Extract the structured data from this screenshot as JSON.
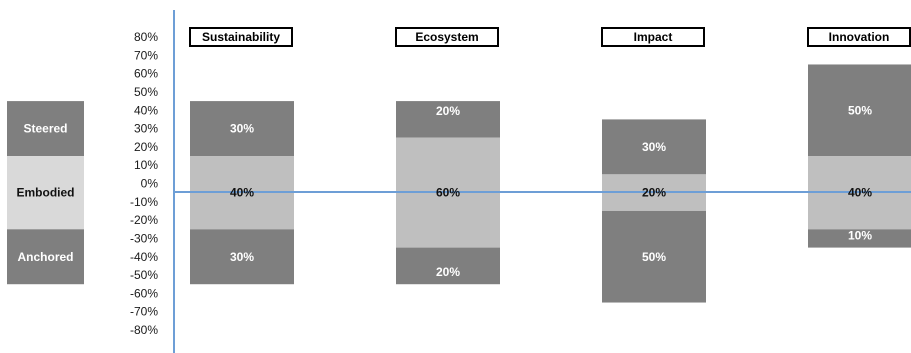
{
  "chart_data": {
    "type": "bar",
    "title": "",
    "xlabel": "",
    "ylabel": "",
    "ylim": [
      -80,
      80
    ],
    "y_ticks": [
      "80%",
      "70%",
      "60%",
      "50%",
      "40%",
      "30%",
      "20%",
      "10%",
      "0%",
      "-10%",
      "-20%",
      "-30%",
      "-40%",
      "-50%",
      "-60%",
      "-70%",
      "-80%"
    ],
    "colors": {
      "dark": "#7f7f7f",
      "light": "#bfbfbf",
      "lightest": "#d9d9d9",
      "axis": "#6d9ed6",
      "label_light": "#ffffff",
      "label_dark": "#111111"
    },
    "row_labels": [
      {
        "label": "Steered",
        "low": 15,
        "high": 45,
        "shade": "dark"
      },
      {
        "label": "Embodied",
        "low": -25,
        "high": 15,
        "shade": "lightest"
      },
      {
        "label": "Anchored",
        "low": -55,
        "high": -25,
        "shade": "dark"
      }
    ],
    "categories": [
      {
        "name": "Sustainability",
        "segments": [
          {
            "low": 15,
            "high": 45,
            "shade": "dark",
            "label": "30%"
          },
          {
            "low": -25,
            "high": 15,
            "shade": "light",
            "label": "40%"
          },
          {
            "low": -55,
            "high": -25,
            "shade": "dark",
            "label": "30%"
          }
        ]
      },
      {
        "name": "Ecosystem",
        "segments": [
          {
            "low": 25,
            "high": 45,
            "shade": "dark",
            "label": "20%"
          },
          {
            "low": -35,
            "high": 25,
            "shade": "light",
            "label": "60%"
          },
          {
            "low": -55,
            "high": -35,
            "shade": "dark",
            "label": "20%"
          }
        ]
      },
      {
        "name": "Impact",
        "segments": [
          {
            "low": 5,
            "high": 35,
            "shade": "dark",
            "label": "30%"
          },
          {
            "low": -15,
            "high": 5,
            "shade": "light",
            "label": "20%"
          },
          {
            "low": -65,
            "high": -15,
            "shade": "dark",
            "label": "50%"
          }
        ]
      },
      {
        "name": "Innovation",
        "segments": [
          {
            "low": 15,
            "high": 65,
            "shade": "dark",
            "label": "50%"
          },
          {
            "low": -25,
            "high": 15,
            "shade": "light",
            "label": "40%"
          },
          {
            "low": -35,
            "high": -25,
            "shade": "dark",
            "label": "10%"
          }
        ]
      }
    ]
  }
}
